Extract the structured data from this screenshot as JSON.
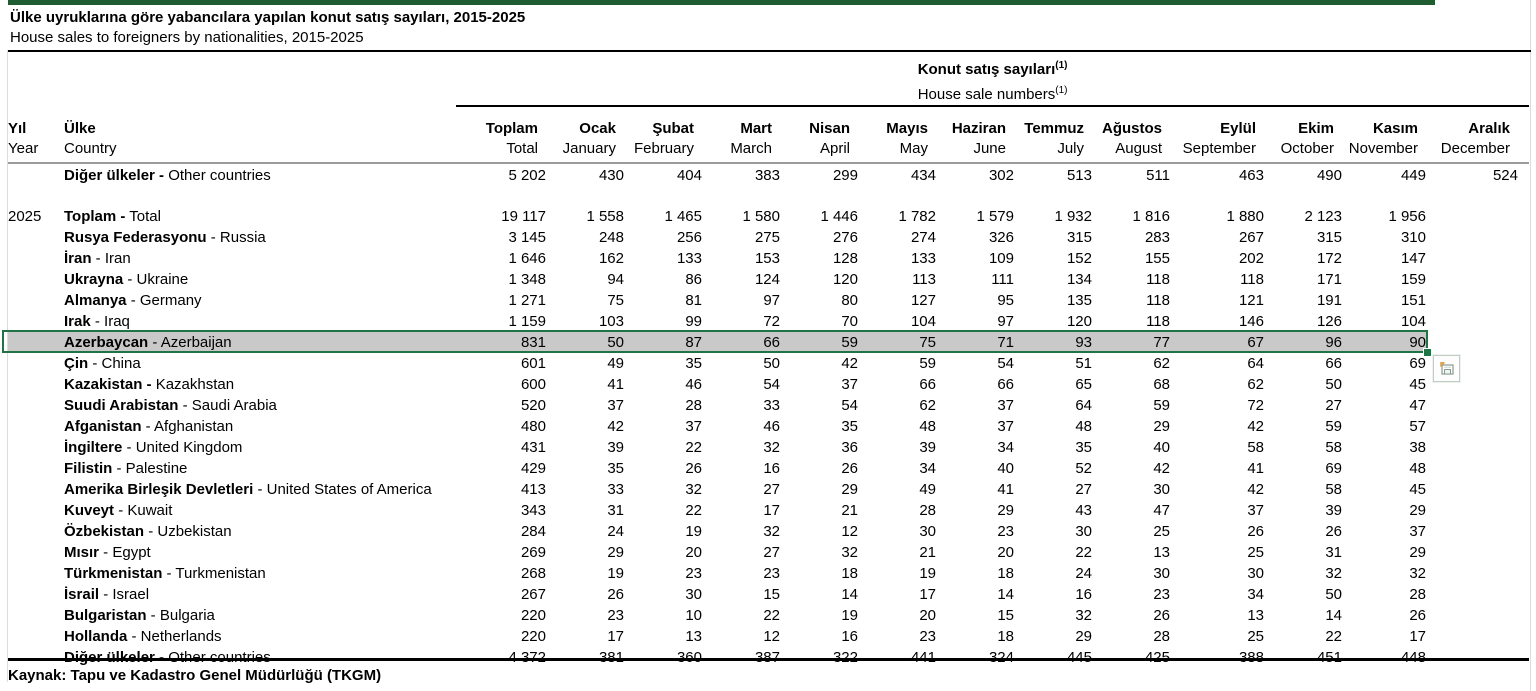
{
  "title": {
    "line1_tr": "Ülke uyruklarına göre yabancılara yapılan konut satış sayıları, 2015-2025",
    "line2_en": "House sales to foreigners by nationalities, 2015-2025"
  },
  "table": {
    "group_header": {
      "tr": "Konut satış sayıları",
      "en": "House sale numbers",
      "footnote": "(1)"
    },
    "corner": {
      "yil_tr": "Yıl",
      "yil_en": "Year",
      "ulke_tr": "Ülke",
      "ulke_en": "Country"
    },
    "columns": [
      {
        "tr": "Toplam",
        "en": "Total"
      },
      {
        "tr": "Ocak",
        "en": "January"
      },
      {
        "tr": "Şubat",
        "en": "February"
      },
      {
        "tr": "Mart",
        "en": "March"
      },
      {
        "tr": "Nisan",
        "en": "April"
      },
      {
        "tr": "Mayıs",
        "en": "May"
      },
      {
        "tr": "Haziran",
        "en": "June"
      },
      {
        "tr": "Temmuz",
        "en": "July"
      },
      {
        "tr": "Ağustos",
        "en": "August"
      },
      {
        "tr": "Eylül",
        "en": "September"
      },
      {
        "tr": "Ekim",
        "en": "October"
      },
      {
        "tr": "Kasım",
        "en": "November"
      },
      {
        "tr": "Aralık",
        "en": "December"
      }
    ],
    "rows": [
      {
        "year": "",
        "tr": "Diğer ülkeler",
        "en": "Other countries",
        "dash_bold": true,
        "bold": false,
        "hl": false,
        "values": [
          "5 202",
          "430",
          "404",
          "383",
          "299",
          "434",
          "302",
          "513",
          "511",
          "463",
          "490",
          "449",
          "524"
        ]
      },
      {
        "spacer": true
      },
      {
        "year": "2025",
        "tr": "Toplam",
        "en": "Total",
        "dash_bold": true,
        "bold": true,
        "hl": false,
        "values": [
          "19 117",
          "1 558",
          "1 465",
          "1 580",
          "1 446",
          "1 782",
          "1 579",
          "1 932",
          "1 816",
          "1 880",
          "2 123",
          "1 956",
          ""
        ]
      },
      {
        "year": "",
        "tr": "Rusya Federasyonu",
        "en": "Russia",
        "dash_bold": false,
        "bold": false,
        "hl": false,
        "values": [
          "3 145",
          "248",
          "256",
          "275",
          "276",
          "274",
          "326",
          "315",
          "283",
          "267",
          "315",
          "310",
          ""
        ]
      },
      {
        "year": "",
        "tr": "İran",
        "en": "Iran",
        "dash_bold": false,
        "bold": false,
        "hl": false,
        "values": [
          "1 646",
          "162",
          "133",
          "153",
          "128",
          "133",
          "109",
          "152",
          "155",
          "202",
          "172",
          "147",
          ""
        ]
      },
      {
        "year": "",
        "tr": "Ukrayna",
        "en": "Ukraine",
        "dash_bold": false,
        "bold": false,
        "hl": false,
        "values": [
          "1 348",
          "94",
          "86",
          "124",
          "120",
          "113",
          "111",
          "134",
          "118",
          "118",
          "171",
          "159",
          ""
        ]
      },
      {
        "year": "",
        "tr": "Almanya",
        "en": "Germany",
        "dash_bold": false,
        "bold": false,
        "hl": false,
        "values": [
          "1 271",
          "75",
          "81",
          "97",
          "80",
          "127",
          "95",
          "135",
          "118",
          "121",
          "191",
          "151",
          ""
        ]
      },
      {
        "year": "",
        "tr": "Irak",
        "en": "Iraq",
        "dash_bold": false,
        "bold": false,
        "hl": false,
        "values": [
          "1 159",
          "103",
          "99",
          "72",
          "70",
          "104",
          "97",
          "120",
          "118",
          "146",
          "126",
          "104",
          ""
        ]
      },
      {
        "year": "",
        "tr": "Azerbaycan",
        "en": "Azerbaijan",
        "dash_bold": false,
        "bold": false,
        "hl": true,
        "values": [
          "831",
          "50",
          "87",
          "66",
          "59",
          "75",
          "71",
          "93",
          "77",
          "67",
          "96",
          "90",
          ""
        ]
      },
      {
        "year": "",
        "tr": "Çin",
        "en": "China",
        "dash_bold": false,
        "bold": false,
        "hl": false,
        "values": [
          "601",
          "49",
          "35",
          "50",
          "42",
          "59",
          "54",
          "51",
          "62",
          "64",
          "66",
          "69",
          ""
        ]
      },
      {
        "year": "",
        "tr": "Kazakistan",
        "en": "Kazakhstan",
        "dash_bold": true,
        "bold": false,
        "hl": false,
        "values": [
          "600",
          "41",
          "46",
          "54",
          "37",
          "66",
          "66",
          "65",
          "68",
          "62",
          "50",
          "45",
          ""
        ]
      },
      {
        "year": "",
        "tr": "Suudi Arabistan",
        "en": "Saudi Arabia",
        "dash_bold": false,
        "bold": false,
        "hl": false,
        "values": [
          "520",
          "37",
          "28",
          "33",
          "54",
          "62",
          "37",
          "64",
          "59",
          "72",
          "27",
          "47",
          ""
        ]
      },
      {
        "year": "",
        "tr": "Afganistan",
        "en": "Afghanistan",
        "dash_bold": false,
        "bold": false,
        "hl": false,
        "values": [
          "480",
          "42",
          "37",
          "46",
          "35",
          "48",
          "37",
          "48",
          "29",
          "42",
          "59",
          "57",
          ""
        ]
      },
      {
        "year": "",
        "tr": "İngiltere",
        "en": "United Kingdom",
        "dash_bold": false,
        "bold": false,
        "hl": false,
        "values": [
          "431",
          "39",
          "22",
          "32",
          "36",
          "39",
          "34",
          "35",
          "40",
          "58",
          "58",
          "38",
          ""
        ]
      },
      {
        "year": "",
        "tr": "Filistin",
        "en": "Palestine",
        "dash_bold": false,
        "bold": false,
        "hl": false,
        "values": [
          "429",
          "35",
          "26",
          "16",
          "26",
          "34",
          "40",
          "52",
          "42",
          "41",
          "69",
          "48",
          ""
        ]
      },
      {
        "year": "",
        "tr": "Amerika Birleşik Devletleri",
        "en": "United States of America",
        "dash_bold": false,
        "bold": false,
        "hl": false,
        "values": [
          "413",
          "33",
          "32",
          "27",
          "29",
          "49",
          "41",
          "27",
          "30",
          "42",
          "58",
          "45",
          ""
        ]
      },
      {
        "year": "",
        "tr": "Kuveyt",
        "en": "Kuwait",
        "dash_bold": false,
        "bold": false,
        "hl": false,
        "values": [
          "343",
          "31",
          "22",
          "17",
          "21",
          "28",
          "29",
          "43",
          "47",
          "37",
          "39",
          "29",
          ""
        ]
      },
      {
        "year": "",
        "tr": "Özbekistan",
        "en": "Uzbekistan",
        "dash_bold": false,
        "bold": false,
        "hl": false,
        "values": [
          "284",
          "24",
          "19",
          "32",
          "12",
          "30",
          "23",
          "30",
          "25",
          "26",
          "26",
          "37",
          ""
        ]
      },
      {
        "year": "",
        "tr": "Mısır",
        "en": "Egypt",
        "dash_bold": false,
        "bold": false,
        "hl": false,
        "values": [
          "269",
          "29",
          "20",
          "27",
          "32",
          "21",
          "20",
          "22",
          "13",
          "25",
          "31",
          "29",
          ""
        ]
      },
      {
        "year": "",
        "tr": "Türkmenistan",
        "en": "Turkmenistan",
        "dash_bold": false,
        "bold": false,
        "hl": false,
        "values": [
          "268",
          "19",
          "23",
          "23",
          "18",
          "19",
          "18",
          "24",
          "30",
          "30",
          "32",
          "32",
          ""
        ]
      },
      {
        "year": "",
        "tr": "İsrail",
        "en": "Israel",
        "dash_bold": false,
        "bold": false,
        "hl": false,
        "values": [
          "267",
          "26",
          "30",
          "15",
          "14",
          "17",
          "14",
          "16",
          "23",
          "34",
          "50",
          "28",
          ""
        ]
      },
      {
        "year": "",
        "tr": "Bulgaristan",
        "en": "Bulgaria",
        "dash_bold": false,
        "bold": false,
        "hl": false,
        "values": [
          "220",
          "23",
          "10",
          "22",
          "19",
          "20",
          "15",
          "32",
          "26",
          "13",
          "14",
          "26",
          ""
        ]
      },
      {
        "year": "",
        "tr": "Hollanda",
        "en": "Netherlands",
        "dash_bold": false,
        "bold": false,
        "hl": false,
        "values": [
          "220",
          "17",
          "13",
          "12",
          "16",
          "23",
          "18",
          "29",
          "28",
          "25",
          "22",
          "17",
          ""
        ]
      },
      {
        "year": "",
        "tr": "Diğer ülkeler",
        "en": "Other countries",
        "dash_bold": true,
        "bold": false,
        "hl": false,
        "values": [
          "4 372",
          "381",
          "360",
          "387",
          "322",
          "441",
          "324",
          "445",
          "425",
          "388",
          "451",
          "448",
          ""
        ]
      }
    ]
  },
  "selection": {
    "row": "Azerbaycan - Azerbaijan"
  },
  "footer": {
    "source": "Kaynak: Tapu ve Kadastro Genel Müdürlüğü (TKGM)"
  },
  "colors": {
    "accent_green": "#1f5c31",
    "selection_border": "#217346",
    "selection_fill": "#c9c9c9"
  }
}
